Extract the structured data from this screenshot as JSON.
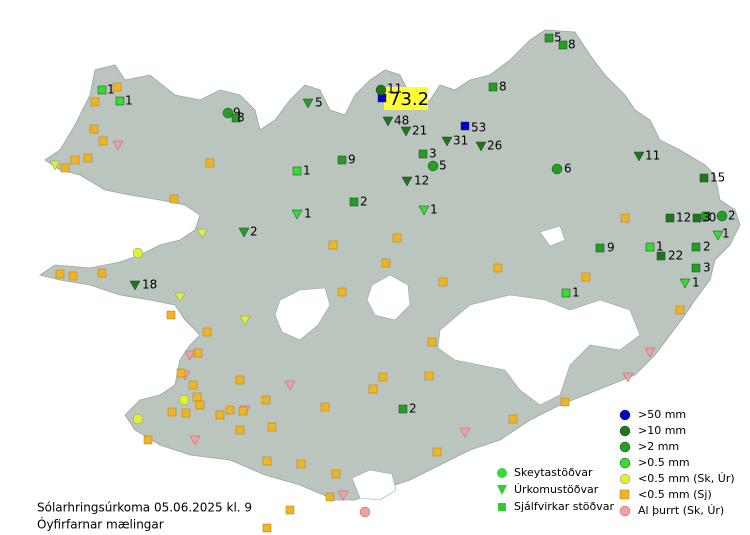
{
  "title": "Sólarhringsúrkoma 05.06.2025 kl. 9",
  "subtitle": "Óyfirfarnar mælingar",
  "station_legend": [
    "Skeytastöðvar",
    "Úrkomustöðvar",
    "Sjálfvirkar stöðvar"
  ],
  "amount_legend": [
    ">50 mm",
    ">10 mm",
    ">2 mm",
    ">0.5 mm",
    "<0.5 mm (Sk, Úr)",
    "<0.5 mm (Sj)",
    "Al þurrt (Sk, Úr)"
  ],
  "stations": {
    "values": [
      73.2,
      11,
      5,
      8,
      8,
      1,
      1,
      9,
      8,
      5,
      48,
      21,
      53,
      31,
      26,
      3,
      5,
      12,
      11,
      6,
      1,
      9,
      15,
      2,
      1,
      1,
      2,
      12,
      10,
      3,
      2,
      1,
      9,
      1,
      22,
      2,
      3,
      1,
      18,
      1,
      2
    ]
  }
}
